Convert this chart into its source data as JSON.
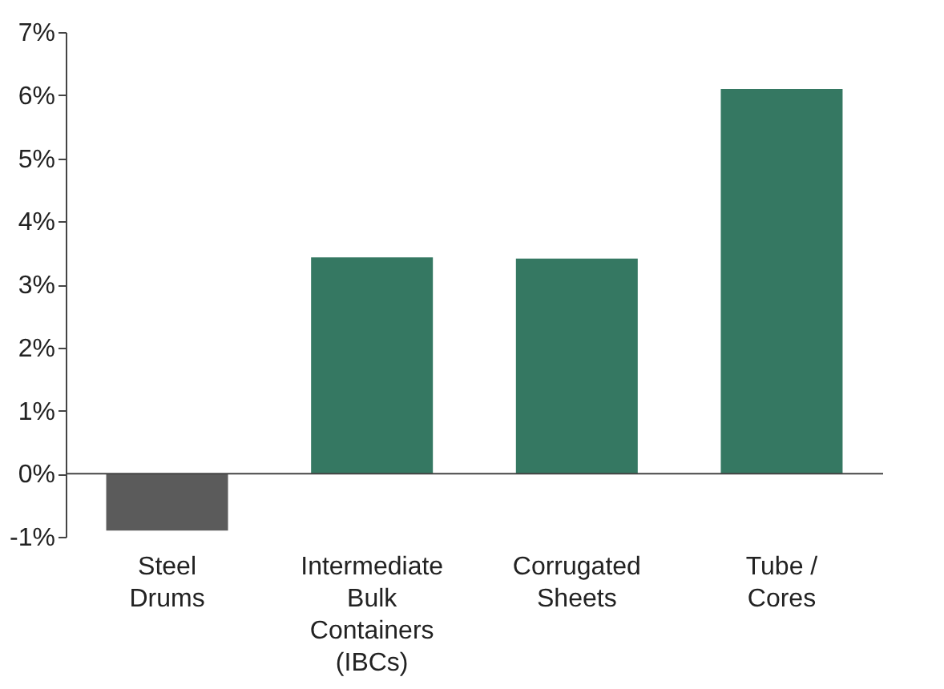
{
  "chart_data": {
    "type": "bar",
    "categories": [
      "Steel Drums",
      "Intermediate Bulk Containers (IBCs)",
      "Corrugated Sheets",
      "Tube / Cores"
    ],
    "values": [
      -0.9,
      3.43,
      3.41,
      6.1
    ],
    "colors": [
      "#5b5b5b",
      "#357862",
      "#357862",
      "#357862"
    ],
    "ylim": [
      -1,
      7
    ],
    "yticks": [
      {
        "value": -1,
        "label": "-1%"
      },
      {
        "value": 0,
        "label": "0%"
      },
      {
        "value": 1,
        "label": "1%"
      },
      {
        "value": 2,
        "label": "2%"
      },
      {
        "value": 3,
        "label": "3%"
      },
      {
        "value": 4,
        "label": "4%"
      },
      {
        "value": 5,
        "label": "5%"
      },
      {
        "value": 6,
        "label": "6%"
      },
      {
        "value": 7,
        "label": "7%"
      }
    ],
    "ref_lines": [
      {
        "axis": "y",
        "value": 0,
        "color": "#444444"
      }
    ],
    "grid": false
  }
}
